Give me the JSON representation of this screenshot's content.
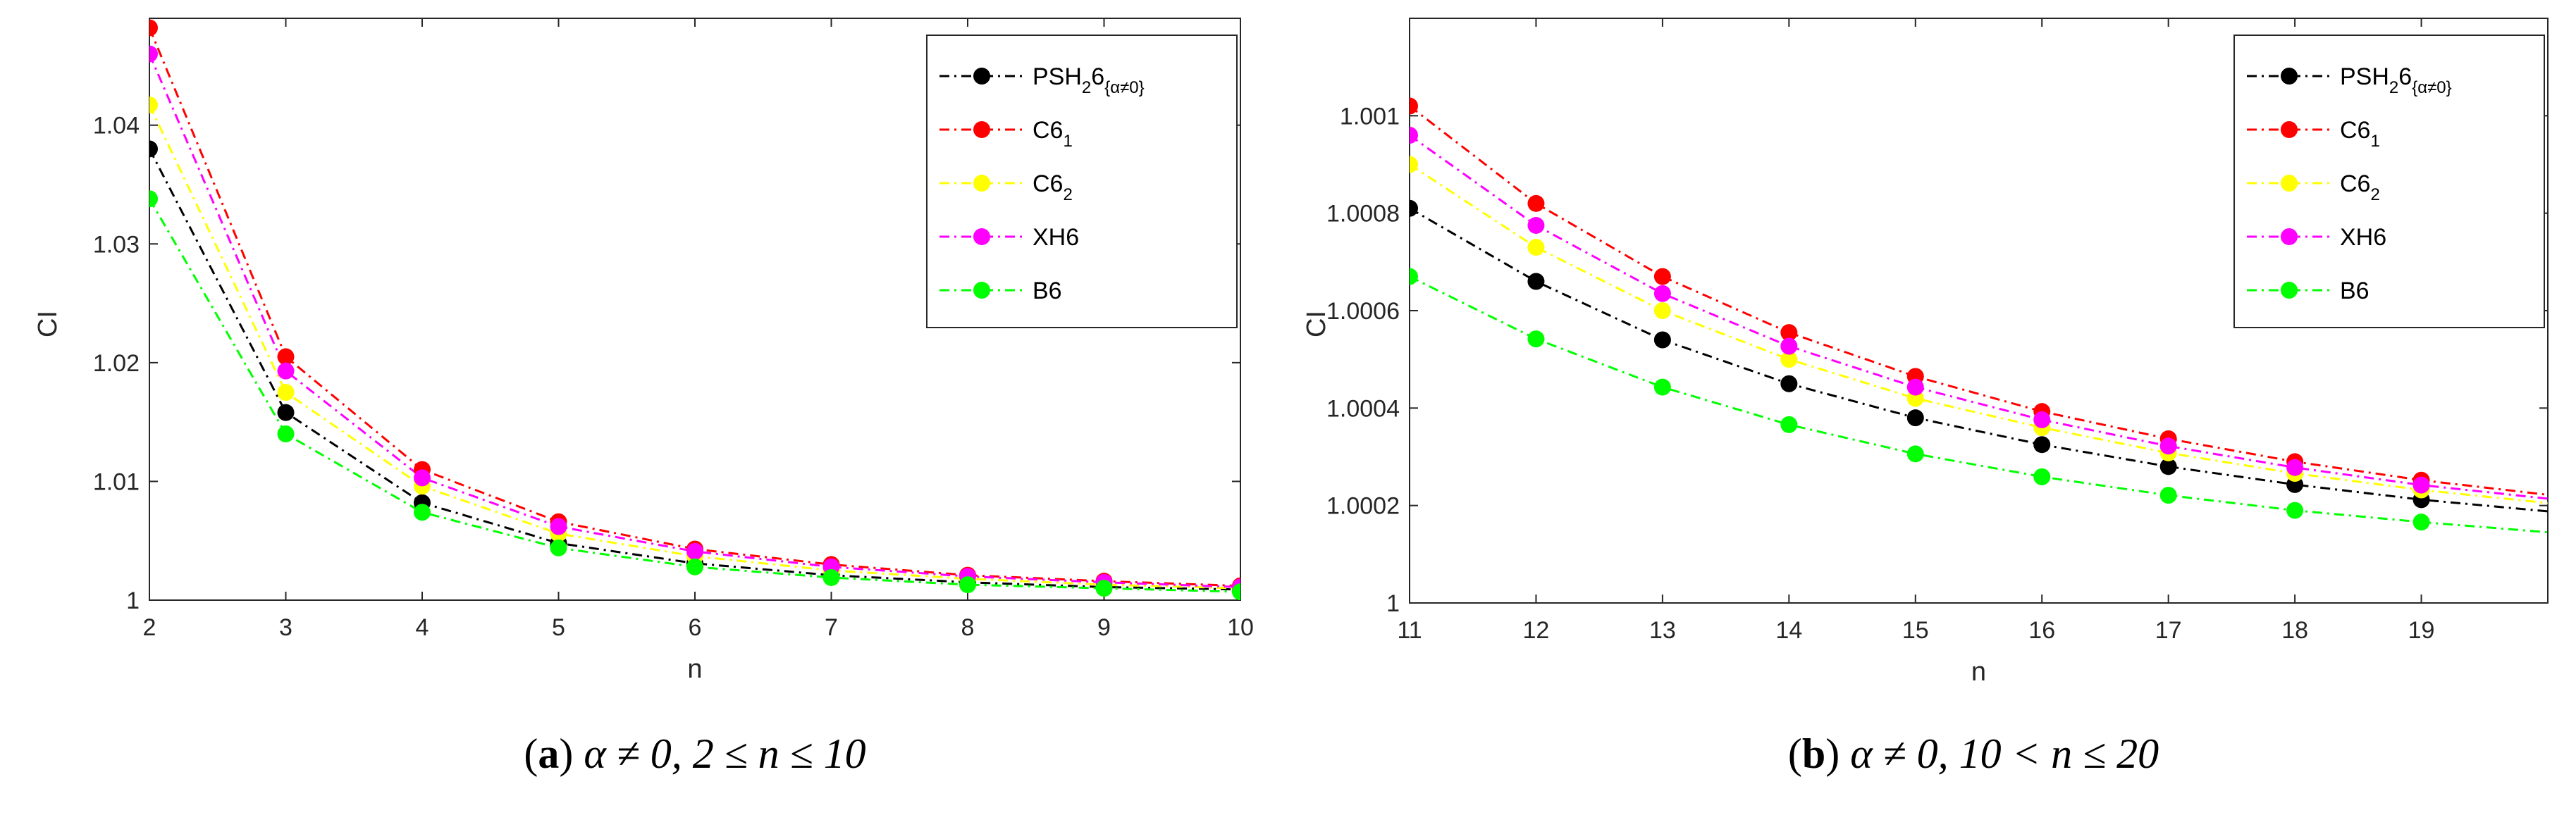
{
  "chart_data": [
    {
      "type": "line",
      "xlabel": "n",
      "ylabel": "CI",
      "x": [
        2,
        3,
        4,
        5,
        6,
        7,
        8,
        9,
        10
      ],
      "xlim": [
        2,
        10
      ],
      "ylim": [
        1,
        1.049
      ],
      "xticks": [
        "2",
        "3",
        "4",
        "5",
        "6",
        "7",
        "8",
        "9",
        "10"
      ],
      "yticks": [
        "1",
        "1.01",
        "1.02",
        "1.03",
        "1.04"
      ],
      "ytick_values": [
        1,
        1.01,
        1.02,
        1.03,
        1.04
      ],
      "legend_position": "top-right",
      "series": [
        {
          "name": "PSH",
          "sub": "2",
          "tail": "6",
          "sub2": "{α≠0}",
          "color": "#000000",
          "values": [
            1.038,
            1.0158,
            1.0082,
            1.0048,
            1.0031,
            1.0021,
            1.0015,
            1.0011,
            1.0009
          ]
        },
        {
          "name": "C6",
          "sub": "1",
          "color": "#ff0000",
          "values": [
            1.0482,
            1.0205,
            1.011,
            1.0066,
            1.0043,
            1.003,
            1.0021,
            1.0016,
            1.0012
          ]
        },
        {
          "name": "C6",
          "sub": "2",
          "color": "#ffff00",
          "values": [
            1.0417,
            1.0175,
            1.0096,
            1.0056,
            1.0037,
            1.0025,
            1.0018,
            1.0013,
            1.001
          ]
        },
        {
          "name": "XH6",
          "sub": "",
          "color": "#ff00ff",
          "values": [
            1.046,
            1.0193,
            1.0103,
            1.0062,
            1.0041,
            1.0028,
            1.002,
            1.0015,
            1.0011
          ]
        },
        {
          "name": "B6",
          "sub": "",
          "color": "#00ff00",
          "values": [
            1.0338,
            1.014,
            1.0074,
            1.0044,
            1.0028,
            1.0019,
            1.0013,
            1.001,
            1.0007
          ]
        }
      ],
      "caption": {
        "label": "a",
        "text": "α ≠ 0, 2 ≤ n ≤ 10"
      }
    },
    {
      "type": "line",
      "xlabel": "n",
      "ylabel": "CI",
      "x": [
        11,
        12,
        13,
        14,
        15,
        16,
        17,
        18,
        19,
        20
      ],
      "markers_count": 9,
      "xlim": [
        11,
        20
      ],
      "ylim": [
        1,
        1.0012
      ],
      "xticks": [
        "11",
        "12",
        "13",
        "14",
        "15",
        "16",
        "17",
        "18",
        "19"
      ],
      "yticks": [
        "1",
        "1.0002",
        "1.0004",
        "1.0006",
        "1.0008",
        "1.001"
      ],
      "ytick_values": [
        1,
        1.0002,
        1.0004,
        1.0006,
        1.0008,
        1.001
      ],
      "legend_position": "top-right",
      "series": [
        {
          "name": "PSH",
          "sub": "2",
          "tail": "6",
          "sub2": "{α≠0}",
          "color": "#000000",
          "values": [
            1.00081,
            1.00066,
            1.00054,
            1.00045,
            1.00038,
            1.000325,
            1.00028,
            1.000243,
            1.000212,
            1.000188
          ]
        },
        {
          "name": "C6",
          "sub": "1",
          "color": "#ff0000",
          "values": [
            1.00102,
            1.00082,
            1.00067,
            1.000555,
            1.000465,
            1.000393,
            1.000337,
            1.00029,
            1.000252,
            1.000222
          ]
        },
        {
          "name": "C6",
          "sub": "2",
          "color": "#ffff00",
          "values": [
            1.0009,
            1.00073,
            1.0006,
            1.0005,
            1.00042,
            1.00036,
            1.000308,
            1.000266,
            1.000232,
            1.000205
          ]
        },
        {
          "name": "XH6",
          "sub": "",
          "color": "#ff00ff",
          "values": [
            1.00096,
            1.000775,
            1.000635,
            1.000527,
            1.000443,
            1.000376,
            1.000322,
            1.000278,
            1.000242,
            1.000214
          ]
        },
        {
          "name": "B6",
          "sub": "",
          "color": "#00ff00",
          "values": [
            1.00067,
            1.000542,
            1.000443,
            1.000366,
            1.000306,
            1.000259,
            1.000221,
            1.00019,
            1.000166,
            1.000145
          ]
        }
      ],
      "caption": {
        "label": "b",
        "text": "α ≠ 0, 10 < n ≤ 20"
      }
    }
  ]
}
